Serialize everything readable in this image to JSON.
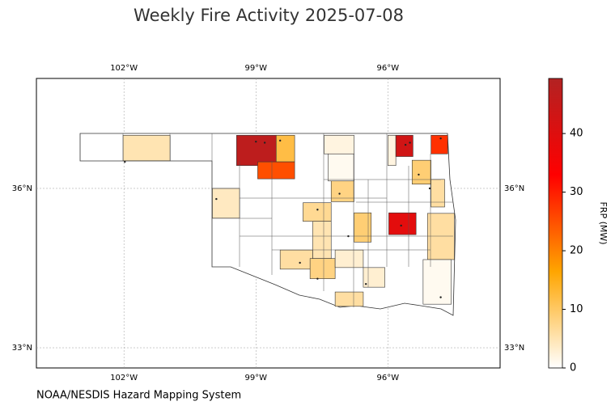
{
  "chart_data": {
    "type": "choropleth",
    "title": "Weekly Fire Activity 2025-07-08",
    "source": "NOAA/NESDIS Hazard Mapping System",
    "xlim": [
      -103.99,
      -93.45
    ],
    "ylim": [
      32.62,
      38.07
    ],
    "xticks": [
      {
        "value": -102,
        "label": "102°W"
      },
      {
        "value": -99,
        "label": "99°W"
      },
      {
        "value": -96,
        "label": "96°W"
      }
    ],
    "yticks": [
      {
        "value": 36,
        "label": "36°N"
      },
      {
        "value": 33,
        "label": "33°N"
      }
    ],
    "grid": true,
    "colorbar": {
      "label": "FRP (MW)",
      "lim": [
        0,
        49.4
      ],
      "ticks": [
        0,
        10,
        20,
        30,
        40
      ],
      "colormap": [
        "#ffffff",
        "#ffa500",
        "#ff0000",
        "#b22222"
      ]
    },
    "regions": [
      {
        "lon": [
          -102.02,
          -100.95
        ],
        "lat": [
          37.0,
          36.52
        ],
        "value": 5
      },
      {
        "lon": [
          -99.44,
          -98.54
        ],
        "lat": [
          37.0,
          36.43
        ],
        "value": 47
      },
      {
        "lon": [
          -98.54,
          -98.12
        ],
        "lat": [
          37.0,
          36.5
        ],
        "value": 12
      },
      {
        "lon": [
          -98.96,
          -98.12
        ],
        "lat": [
          36.5,
          36.18
        ],
        "value": 25
      },
      {
        "lon": [
          -97.45,
          -96.77
        ],
        "lat": [
          37.0,
          36.65
        ],
        "value": 2
      },
      {
        "lon": [
          -96.0,
          -95.82
        ],
        "lat": [
          37.0,
          36.43
        ],
        "value": 2
      },
      {
        "lon": [
          -95.82,
          -95.43
        ],
        "lat": [
          37.0,
          36.6
        ],
        "value": 43
      },
      {
        "lon": [
          -95.02,
          -94.64
        ],
        "lat": [
          37.0,
          36.65
        ],
        "value": 28
      },
      {
        "lon": [
          -95.45,
          -95.02
        ],
        "lat": [
          36.53,
          36.08
        ],
        "value": 9
      },
      {
        "lon": [
          -95.02,
          -94.71
        ],
        "lat": [
          36.17,
          35.65
        ],
        "value": 6
      },
      {
        "lon": [
          -95.98,
          -95.36
        ],
        "lat": [
          35.54,
          35.13
        ],
        "value": 39
      },
      {
        "lon": [
          -97.29,
          -96.77
        ],
        "lat": [
          36.17,
          35.75
        ],
        "value": 8
      },
      {
        "lon": [
          -97.93,
          -97.29
        ],
        "lat": [
          35.73,
          35.38
        ],
        "value": 7
      },
      {
        "lon": [
          -99.99,
          -99.37
        ],
        "lat": [
          36.0,
          35.44
        ],
        "value": 4
      },
      {
        "lon": [
          -96.77,
          -96.38
        ],
        "lat": [
          35.54,
          34.99
        ],
        "value": 9
      },
      {
        "lon": [
          -97.71,
          -97.29
        ],
        "lat": [
          35.38,
          34.68
        ],
        "value": 5
      },
      {
        "lon": [
          -98.45,
          -97.71
        ],
        "lat": [
          34.84,
          34.48
        ],
        "value": 6
      },
      {
        "lon": [
          -97.77,
          -97.2
        ],
        "lat": [
          34.68,
          34.3
        ],
        "value": 8
      },
      {
        "lon": [
          -97.2,
          -96.56
        ],
        "lat": [
          34.84,
          34.51
        ],
        "value": 3
      },
      {
        "lon": [
          -96.56,
          -96.07
        ],
        "lat": [
          34.51,
          34.14
        ],
        "value": 3
      },
      {
        "lon": [
          -97.2,
          -96.56
        ],
        "lat": [
          34.05,
          33.78
        ],
        "value": 6
      },
      {
        "lon": [
          -95.1,
          -94.49
        ],
        "lat": [
          35.53,
          34.66
        ],
        "value": 6
      },
      {
        "lon": [
          -95.2,
          -94.56
        ],
        "lat": [
          34.66,
          33.82
        ],
        "value": 1
      },
      {
        "lon": [
          -97.36,
          -96.77
        ],
        "lat": [
          36.65,
          36.14
        ],
        "value": 1
      }
    ],
    "points": [
      {
        "lon": -98.8,
        "lat": 36.86
      },
      {
        "lon": -99.0,
        "lat": 36.88
      },
      {
        "lon": -98.45,
        "lat": 36.9
      },
      {
        "lon": -95.6,
        "lat": 36.82
      },
      {
        "lon": -95.5,
        "lat": 36.86
      },
      {
        "lon": -94.8,
        "lat": 36.94
      },
      {
        "lon": -95.3,
        "lat": 36.26
      },
      {
        "lon": -95.05,
        "lat": 36.0
      },
      {
        "lon": -95.7,
        "lat": 35.3
      },
      {
        "lon": -97.1,
        "lat": 35.9
      },
      {
        "lon": -97.6,
        "lat": 35.6
      },
      {
        "lon": -96.9,
        "lat": 35.1
      },
      {
        "lon": -101.98,
        "lat": 36.5
      },
      {
        "lon": -97.6,
        "lat": 34.3
      },
      {
        "lon": -94.8,
        "lat": 33.95
      },
      {
        "lon": -99.9,
        "lat": 35.8
      },
      {
        "lon": -98.0,
        "lat": 34.6
      },
      {
        "lon": -96.5,
        "lat": 34.2
      }
    ]
  }
}
